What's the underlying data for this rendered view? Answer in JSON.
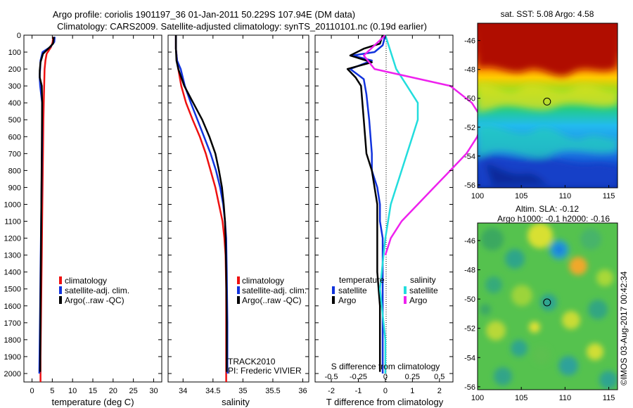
{
  "figure": {
    "title_line1": "Argo profile: coriolis 1901197_36 01-Jan-2011 50.229S 107.94E (DM data)",
    "title_line2": "Climatology: CARS2009. Satellite-adjusted climatology: synTS_20110101.nc (0.19d earlier)",
    "credit": "©IMOS 03-Aug-2017 00:42:34"
  },
  "colors": {
    "climatology": "#ee1111",
    "satellite": "#1133dd",
    "argo": "#000000",
    "cyan": "#22dddd",
    "magenta": "#ee22ee"
  },
  "chart_data": [
    {
      "type": "line",
      "name": "temperature-profile",
      "xlabel": "temperature (deg C)",
      "ylabel": "",
      "xlim": [
        -2,
        32
      ],
      "ylim": [
        2050,
        0
      ],
      "xticks": [
        0,
        5,
        10,
        15,
        20,
        25,
        30
      ],
      "yticks": [
        0,
        100,
        200,
        300,
        400,
        500,
        600,
        700,
        800,
        900,
        1000,
        1100,
        1200,
        1300,
        1400,
        1500,
        1600,
        1700,
        1800,
        1900,
        2000
      ],
      "legend": [
        "climatology",
        "satellite-adj. clim.",
        "Argo(..raw -QC)"
      ],
      "series": [
        {
          "name": "climatology",
          "color": "#ee1111",
          "x": [
            5.2,
            5.1,
            4.7,
            3.6,
            3.3,
            3.1,
            3.0,
            2.9,
            2.8,
            2.7,
            2.6,
            2.5,
            2.4,
            2.3,
            2.2,
            2.1,
            2.1
          ],
          "y": [
            10,
            40,
            70,
            110,
            150,
            200,
            300,
            400,
            500,
            700,
            900,
            1100,
            1300,
            1500,
            1700,
            1900,
            2050
          ]
        },
        {
          "name": "satellite-adj. clim.",
          "color": "#1133dd",
          "x": [
            5.6,
            5.5,
            4.5,
            2.6,
            2.1,
            2.0,
            1.9,
            1.9,
            2.0,
            2.5,
            2.5,
            2.4,
            2.3,
            2.2,
            2.1,
            2.0,
            1.9,
            1.8
          ],
          "y": [
            10,
            40,
            70,
            100,
            150,
            200,
            230,
            260,
            300,
            400,
            600,
            800,
            1000,
            1200,
            1400,
            1600,
            1800,
            2000
          ]
        },
        {
          "name": "Argo(..raw -QC)",
          "color": "#000000",
          "x": [
            5.4,
            5.2,
            4.0,
            2.7,
            2.1,
            1.9,
            1.9,
            2.4,
            2.5,
            2.4,
            2.3,
            2.2,
            2.1,
            2.0
          ],
          "y": [
            10,
            50,
            80,
            110,
            160,
            210,
            250,
            300,
            400,
            700,
            1000,
            1300,
            1600,
            1990
          ]
        }
      ]
    },
    {
      "type": "line",
      "name": "salinity-profile",
      "xlabel": "salinity",
      "xlim": [
        33.75,
        36.1
      ],
      "ylim": [
        2050,
        0
      ],
      "xticks": [
        34,
        34.5,
        35,
        35.5,
        36
      ],
      "xticklabels": [
        "34",
        "34.5",
        "35",
        "35.5",
        "36"
      ],
      "legend": [
        "climatology",
        "satellite-adj. clim.",
        "Argo(..raw -QC)"
      ],
      "annotation_line1": "TRACK2010",
      "annotation_line2": "PI: Frederic VIVIER",
      "series": [
        {
          "name": "climatology",
          "color": "#ee1111",
          "x": [
            33.88,
            33.88,
            33.9,
            33.92,
            33.97,
            34.05,
            34.16,
            34.28,
            34.38,
            34.46,
            34.54,
            34.6,
            34.66,
            34.69,
            34.71,
            34.72,
            34.72,
            34.72
          ],
          "y": [
            0,
            80,
            150,
            200,
            300,
            400,
            500,
            600,
            700,
            800,
            900,
            1000,
            1100,
            1200,
            1300,
            1500,
            1800,
            2050
          ]
        },
        {
          "name": "satellite-adj. clim.",
          "color": "#1133dd",
          "x": [
            33.88,
            33.88,
            33.9,
            33.96,
            34.03,
            34.13,
            34.24,
            34.35,
            34.46,
            34.55,
            34.62,
            34.67,
            34.7,
            34.72,
            34.73,
            34.74,
            34.74
          ],
          "y": [
            0,
            80,
            150,
            200,
            300,
            400,
            500,
            600,
            700,
            800,
            900,
            1000,
            1100,
            1200,
            1400,
            1700,
            2000
          ]
        },
        {
          "name": "Argo(..raw -QC)",
          "color": "#000000",
          "x": [
            33.88,
            33.88,
            33.89,
            33.92,
            34.02,
            34.17,
            34.32,
            34.44,
            34.54,
            34.6,
            34.65,
            34.68,
            34.7,
            34.71,
            34.72,
            34.73,
            34.73
          ],
          "y": [
            0,
            80,
            150,
            200,
            300,
            400,
            500,
            600,
            700,
            800,
            900,
            1000,
            1100,
            1200,
            1400,
            1700,
            1990
          ]
        }
      ]
    },
    {
      "type": "line",
      "name": "difference-profile",
      "xlabel": "T difference from climatology",
      "xlabel_top": "S difference from climatology",
      "xlim": [
        -2.6,
        2.5
      ],
      "ylim": [
        2050,
        0
      ],
      "xticks": [
        -2,
        -1,
        0,
        1,
        2
      ],
      "s_ticklabels": [
        "-0.5",
        "-0.25",
        "0",
        "0.25",
        "0.5"
      ],
      "legend_temperature": "temperature",
      "legend_salinity": "salinity",
      "legend_satellite": "satellite",
      "legend_argo": "Argo",
      "series": [
        {
          "name": "temperature satellite",
          "color": "#1133dd",
          "x": [
            0.0,
            -0.1,
            -0.4,
            -1.2,
            -0.5,
            -1.3,
            -0.8,
            -0.7,
            -0.6,
            -0.5,
            -0.5,
            -0.3,
            -0.2,
            -0.2,
            -0.1,
            -0.1,
            -0.1,
            -0.1,
            -0.1,
            -0.1
          ],
          "y": [
            0,
            60,
            100,
            120,
            150,
            200,
            260,
            350,
            500,
            700,
            800,
            900,
            1000,
            1100,
            1200,
            1400,
            1600,
            1800,
            1950,
            2000
          ]
        },
        {
          "name": "temperature Argo",
          "color": "#000000",
          "x": [
            -0.1,
            -0.2,
            -0.8,
            -1.3,
            -0.5,
            -1.4,
            -1.1,
            -0.9,
            -0.8,
            -0.7,
            -0.5,
            -0.3,
            -0.3,
            -0.3,
            -0.2,
            -0.2,
            -0.2,
            -0.2
          ],
          "y": [
            0,
            50,
            80,
            120,
            160,
            200,
            250,
            300,
            500,
            700,
            800,
            1000,
            1200,
            1400,
            1600,
            1800,
            1900,
            1990
          ]
        },
        {
          "name": "salinity satellite",
          "color": "#22dddd",
          "x": [
            0.0,
            0.05,
            0.1,
            0.2,
            0.3,
            0.3,
            0.25,
            0.2,
            0.15,
            0.1,
            0.05,
            0.0,
            -0.05,
            0.0,
            0.0
          ],
          "y": [
            0,
            100,
            200,
            300,
            400,
            500,
            600,
            700,
            800,
            900,
            1000,
            1200,
            1500,
            1800,
            2000
          ]
        },
        {
          "name": "salinity Argo",
          "color": "#ee22ee",
          "x": [
            0.0,
            -0.2,
            -0.1,
            0.6,
            0.8,
            0.9,
            0.85,
            0.75,
            0.6,
            0.45,
            0.3,
            0.15,
            0.05,
            0.0
          ],
          "y": [
            0,
            120,
            200,
            300,
            400,
            500,
            600,
            700,
            800,
            900,
            1000,
            1100,
            1200,
            1300
          ]
        }
      ]
    },
    {
      "type": "heatmap",
      "name": "sst-map",
      "title": "sat. SST: 5.08  Argo: 4.58",
      "xlim": [
        100,
        116
      ],
      "ylim": [
        -56.2,
        -44.8
      ],
      "xticks": [
        100,
        105,
        110,
        115
      ],
      "yticks": [
        -46,
        -48,
        -50,
        -52,
        -54,
        -56
      ],
      "marker": {
        "lon": 107.94,
        "lat": -50.229
      }
    },
    {
      "type": "heatmap",
      "name": "sla-map",
      "title_line1": "Altim. SLA: -0.12",
      "title_line2": "Argo h1000: -0.1  h2000: -0.16",
      "xlim": [
        100,
        116
      ],
      "ylim": [
        -56.2,
        -44.8
      ],
      "xticks": [
        100,
        105,
        110,
        115
      ],
      "yticks": [
        -46,
        -48,
        -50,
        -52,
        -54,
        -56
      ],
      "marker": {
        "lon": 107.94,
        "lat": -50.229
      }
    }
  ]
}
